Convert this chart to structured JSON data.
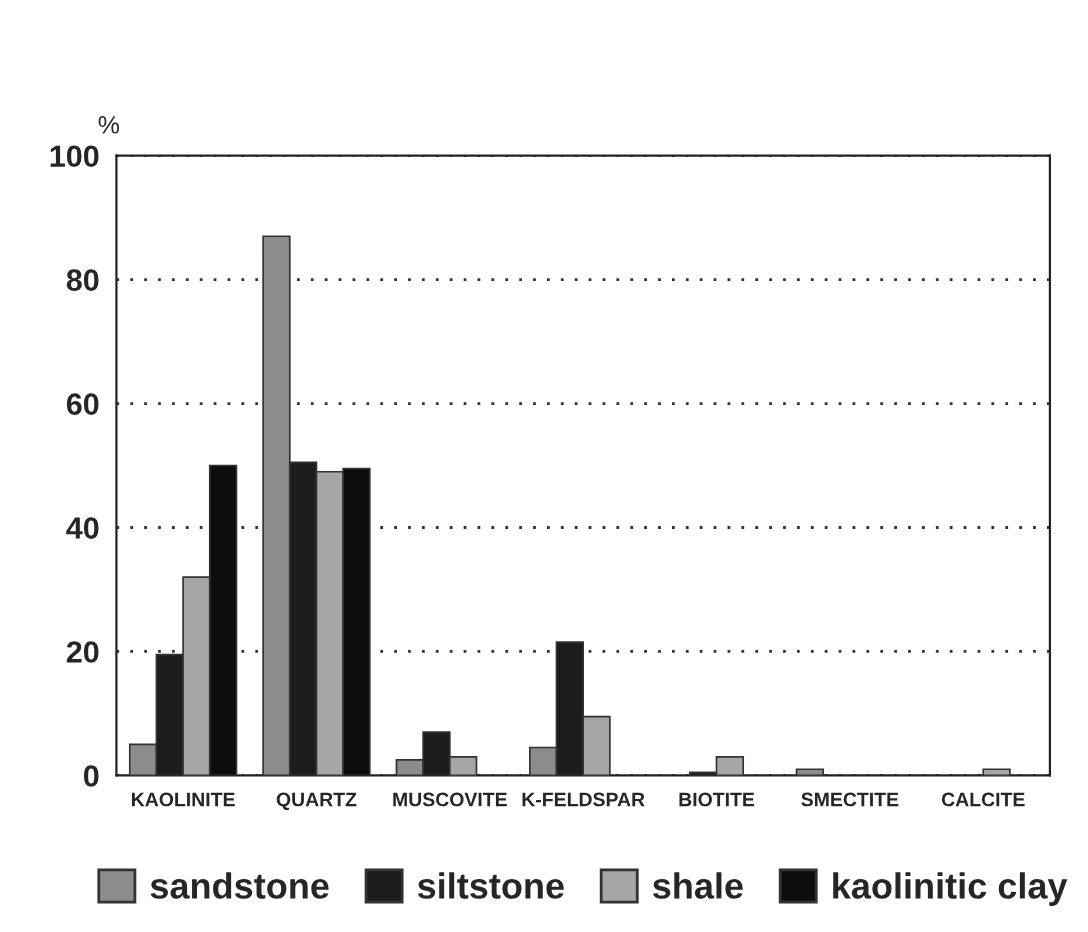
{
  "chart_data": {
    "type": "bar",
    "ylabel": "%",
    "categories": [
      "KAOLINITE",
      "QUARTZ",
      "MUSCOVITE",
      "K-FELDSPAR",
      "BIOTITE",
      "SMECTITE",
      "CALCITE"
    ],
    "series": [
      {
        "name": "sandstone",
        "color": "#8c8c8c",
        "values": [
          5,
          87,
          2.5,
          4.5,
          null,
          1,
          null
        ]
      },
      {
        "name": "siltstone",
        "color": "#1c1c1c",
        "values": [
          19.5,
          50.5,
          7,
          21.5,
          0.5,
          null,
          null
        ]
      },
      {
        "name": "shale",
        "color": "#a6a6a6",
        "values": [
          32,
          49,
          3,
          9.5,
          3,
          null,
          1
        ]
      },
      {
        "name": "kaolinitic clay",
        "color": "#0d0d0d",
        "values": [
          50,
          49.5,
          null,
          null,
          null,
          null,
          null
        ]
      }
    ],
    "ylim": [
      0,
      100
    ],
    "yticks": [
      0,
      20,
      40,
      60,
      80,
      100
    ],
    "grid": "y",
    "legend": "bottom"
  }
}
